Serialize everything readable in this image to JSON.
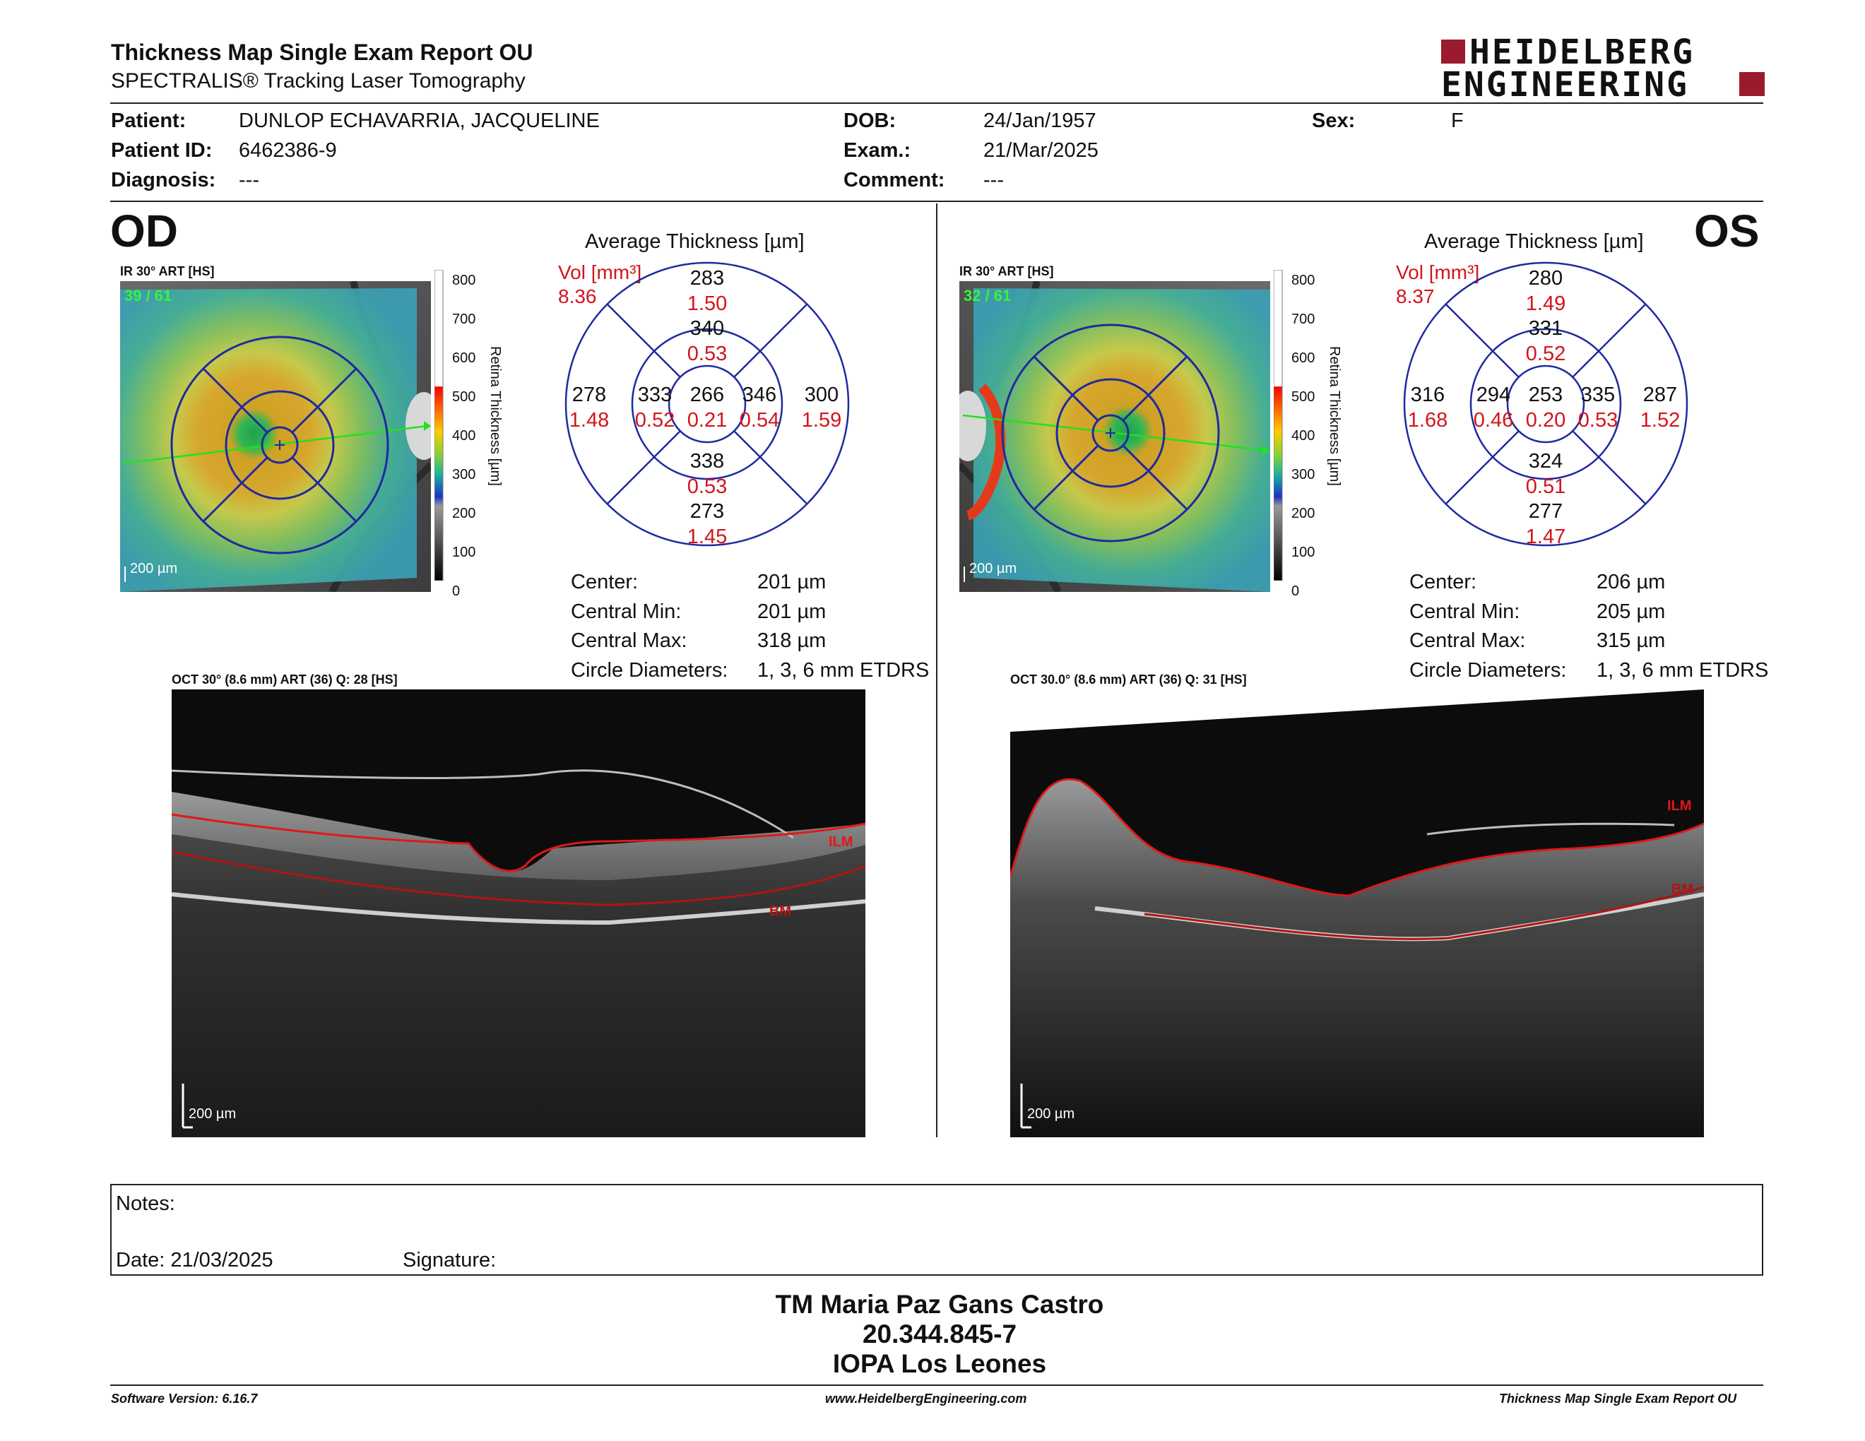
{
  "report": {
    "title": "Thickness Map Single Exam Report OU",
    "subtitle": "SPECTRALIS® Tracking Laser Tomography"
  },
  "logo": {
    "line1": "HEIDELBERG",
    "line2": "ENGINEERING",
    "accent": "#9b1b2e"
  },
  "patient": {
    "patient_label": "Patient:",
    "patient_value": "DUNLOP ECHAVARRIA, JACQUELINE",
    "id_label": "Patient ID:",
    "id_value": "6462386-9",
    "diagnosis_label": "Diagnosis:",
    "diagnosis_value": "---",
    "dob_label": "DOB:",
    "dob_value": "24/Jan/1957",
    "exam_label": "Exam.:",
    "exam_value": "21/Mar/2025",
    "comment_label": "Comment:",
    "comment_value": "---",
    "sex_label": "Sex:",
    "sex_value": "F"
  },
  "scale": {
    "ticks": [
      "800",
      "700",
      "600",
      "500",
      "400",
      "300",
      "200",
      "100",
      "0"
    ],
    "label": "Retina Thickness [µm]"
  },
  "od": {
    "eye": "OD",
    "fundus_caption": "IR 30° ART [HS]",
    "fundus_counter": "39 / 61",
    "fundus_scale": "200 µm",
    "avg_title": "Average Thickness [µm]",
    "vol_label": "Vol [mm³]",
    "vol_total": "8.36",
    "grid": {
      "center": {
        "t": "266",
        "v": "0.21"
      },
      "inner_sup": {
        "t": "340",
        "v": "0.53"
      },
      "inner_inf": {
        "t": "338",
        "v": "0.53"
      },
      "inner_left": {
        "t": "333",
        "v": "0.52"
      },
      "inner_right": {
        "t": "346",
        "v": "0.54"
      },
      "outer_sup": {
        "t": "283",
        "v": "1.50"
      },
      "outer_inf": {
        "t": "273",
        "v": "1.45"
      },
      "outer_left": {
        "t": "278",
        "v": "1.48"
      },
      "outer_right": {
        "t": "300",
        "v": "1.59"
      }
    },
    "stats": {
      "center_label": "Center:",
      "center_value": "201 µm",
      "cmin_label": "Central Min:",
      "cmin_value": "201 µm",
      "cmax_label": "Central Max:",
      "cmax_value": "318 µm",
      "circ_label": "Circle Diameters:",
      "circ_value": "1, 3, 6 mm ETDRS"
    },
    "oct_caption": "OCT 30° (8.6 mm) ART (36) Q: 28 [HS]",
    "oct_scale": "200 µm",
    "ilm": "ILM",
    "bm": "BM"
  },
  "os": {
    "eye": "OS",
    "fundus_caption": "IR 30° ART [HS]",
    "fundus_counter": "32 / 61",
    "fundus_scale": "200 µm",
    "avg_title": "Average Thickness [µm]",
    "vol_label": "Vol [mm³]",
    "vol_total": "8.37",
    "grid": {
      "center": {
        "t": "253",
        "v": "0.20"
      },
      "inner_sup": {
        "t": "331",
        "v": "0.52"
      },
      "inner_inf": {
        "t": "324",
        "v": "0.51"
      },
      "inner_left": {
        "t": "294",
        "v": "0.46"
      },
      "inner_right": {
        "t": "335",
        "v": "0.53"
      },
      "outer_sup": {
        "t": "280",
        "v": "1.49"
      },
      "outer_inf": {
        "t": "277",
        "v": "1.47"
      },
      "outer_left": {
        "t": "316",
        "v": "1.68"
      },
      "outer_right": {
        "t": "287",
        "v": "1.52"
      }
    },
    "stats": {
      "center_label": "Center:",
      "center_value": "206 µm",
      "cmin_label": "Central Min:",
      "cmin_value": "205 µm",
      "cmax_label": "Central Max:",
      "cmax_value": "315 µm",
      "circ_label": "Circle Diameters:",
      "circ_value": "1, 3, 6 mm ETDRS"
    },
    "oct_caption": "OCT 30.0° (8.6 mm) ART (36) Q: 31 [HS]",
    "oct_scale": "200 µm",
    "ilm": "ILM",
    "bm": "BM"
  },
  "notes": {
    "notes_label": "Notes:",
    "date_label": "Date: 21/03/2025",
    "signature_label": "Signature:"
  },
  "signer": {
    "name": "TM Maria Paz Gans Castro",
    "rut": "20.344.845-7",
    "clinic": "IOPA Los Leones"
  },
  "footer": {
    "software": "Software Version: 6.16.7",
    "website": "www.HeidelbergEngineering.com",
    "report_name": "Thickness Map Single Exam Report OU"
  },
  "colors": {
    "grid_blue": "#1f2aa0",
    "value_red": "#d4141b",
    "ilm_red": "#e01818"
  }
}
